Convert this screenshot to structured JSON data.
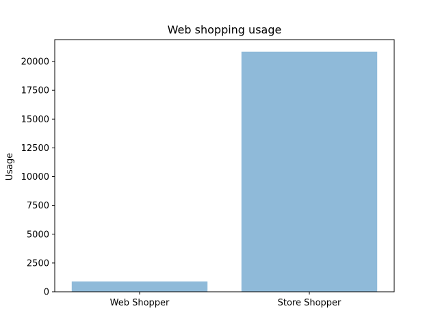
{
  "chart_data": {
    "type": "bar",
    "title": "Web shopping usage",
    "xlabel": "",
    "ylabel": "Usage",
    "categories": [
      "Web Shopper",
      "Store Shopper"
    ],
    "values": [
      900,
      20850
    ],
    "ylim": [
      0,
      21900
    ],
    "yticks": [
      0,
      2500,
      5000,
      7500,
      10000,
      12500,
      15000,
      17500,
      20000
    ],
    "bar_color": "#8fbad9",
    "grid": false,
    "legend": "none"
  }
}
